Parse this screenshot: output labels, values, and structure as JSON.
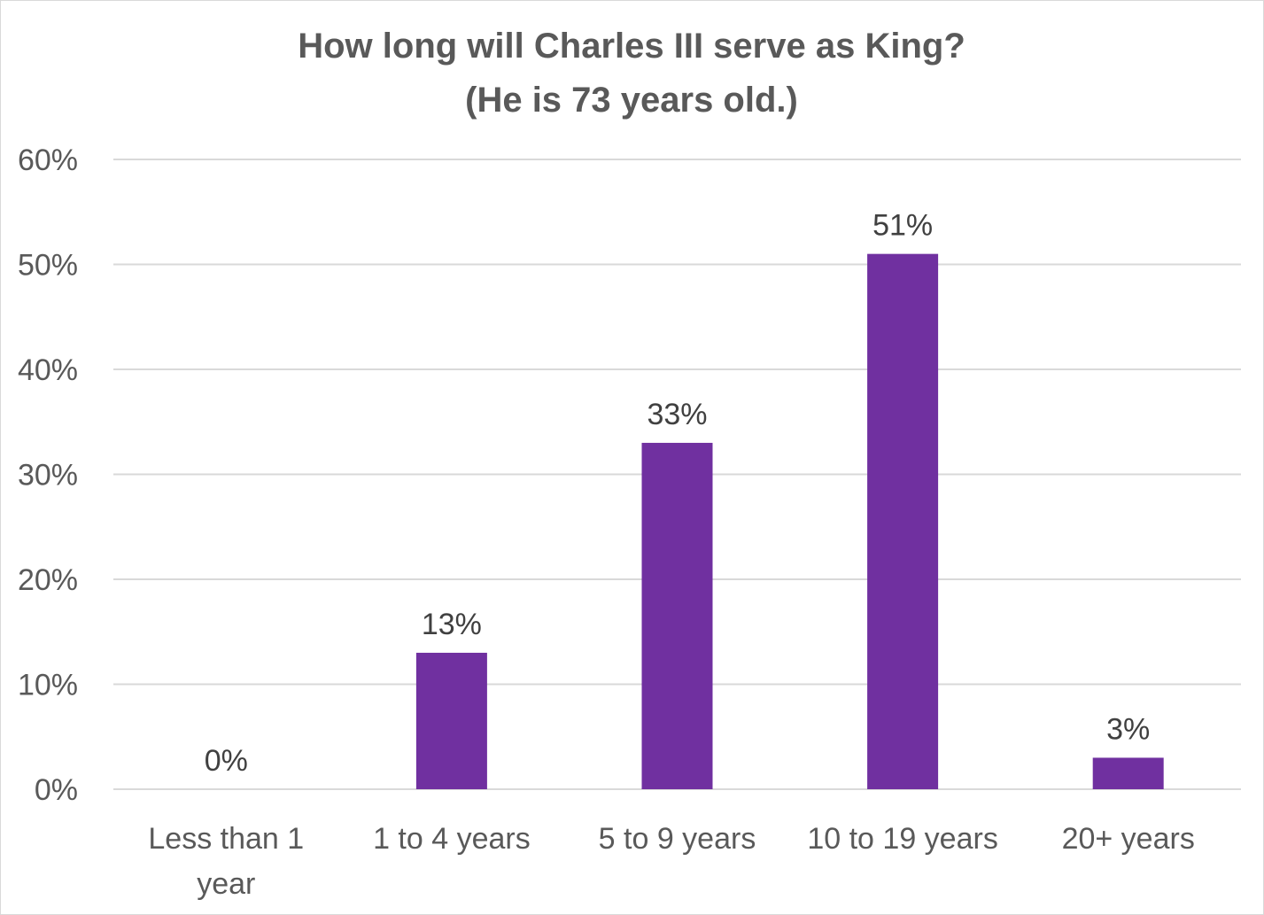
{
  "chart_data": {
    "type": "bar",
    "title": [
      "How long will Charles III serve as King?",
      "(He is 73 years old.)"
    ],
    "categories": [
      [
        "Less than 1",
        "year"
      ],
      [
        "1 to 4 years"
      ],
      [
        "5 to 9 years"
      ],
      [
        "10 to 19 years"
      ],
      [
        "20+ years"
      ]
    ],
    "values": [
      0,
      13,
      33,
      51,
      3
    ],
    "data_labels": [
      "0%",
      "13%",
      "33%",
      "51%",
      "3%"
    ],
    "ylim": [
      0,
      60
    ],
    "yticks": [
      0,
      10,
      20,
      30,
      40,
      50,
      60
    ],
    "ytick_labels": [
      "0%",
      "10%",
      "20%",
      "30%",
      "40%",
      "50%",
      "60%"
    ],
    "xlabel": "",
    "ylabel": "",
    "grid": true,
    "legend": "none",
    "colors": {
      "bar": "#7030a0",
      "grid": "#d9d9d9",
      "text": "#595959",
      "label": "#404040"
    }
  }
}
